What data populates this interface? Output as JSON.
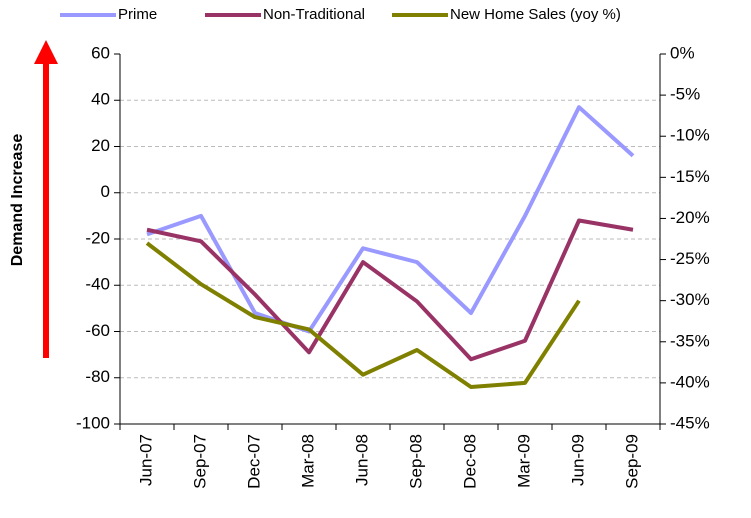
{
  "chart_data": {
    "type": "line",
    "y_label": "Demand Increase",
    "categories": [
      "Jun-07",
      "Sep-07",
      "Dec-07",
      "Mar-08",
      "Jun-08",
      "Sep-08",
      "Dec-08",
      "Mar-09",
      "Jun-09",
      "Sep-09"
    ],
    "series": [
      {
        "name": "Prime",
        "color": "#9999ff",
        "values": [
          -18,
          -10,
          -52,
          -60,
          -24,
          -30,
          -52,
          -10,
          37,
          16
        ]
      },
      {
        "name": "Non-Traditional",
        "color": "#993366",
        "values": [
          -16,
          -21,
          -44,
          -69,
          -30,
          -47,
          -72,
          -64,
          -12,
          -16
        ]
      },
      {
        "name": "New Home Sales (yoy %)",
        "color": "#808000",
        "axis": "y2",
        "values": [
          -23,
          -28,
          -32,
          -33.5,
          -39,
          -36,
          -40.5,
          -40,
          -30,
          null
        ]
      }
    ],
    "ylim": [
      -100,
      60
    ],
    "yticks": [
      -100,
      -80,
      -60,
      -40,
      -20,
      0,
      20,
      40,
      60
    ],
    "y2lim": [
      -45,
      0
    ],
    "y2ticks": [
      {
        "value": -45,
        "label": "-45%"
      },
      {
        "value": -40,
        "label": "-40%"
      },
      {
        "value": -35,
        "label": "-35%"
      },
      {
        "value": -30,
        "label": "-30%"
      },
      {
        "value": -25,
        "label": "-25%"
      },
      {
        "value": -20,
        "label": "-20%"
      },
      {
        "value": -15,
        "label": "-15%"
      },
      {
        "value": -10,
        "label": "-10%"
      },
      {
        "value": -5,
        "label": "-5%"
      },
      {
        "value": 0,
        "label": "0%"
      }
    ],
    "grid": true,
    "legend": "top"
  }
}
